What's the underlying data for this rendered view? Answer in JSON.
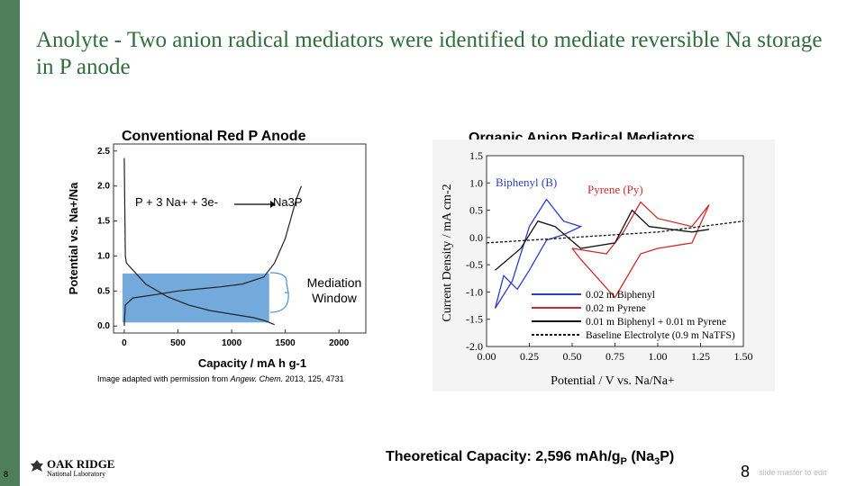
{
  "slide": {
    "title": "Anolyte - Two anion radical mediators were identified to mediate reversible Na storage in P anode",
    "left_heading": "Conventional Red P Anode",
    "right_heading": "Organic Anion Radical Mediators",
    "image_credit_prefix": "Image adapted with permission from ",
    "image_credit_journal": "Angew. Chem.",
    "image_credit_suffix": " 2013, 125, 4731",
    "capacity_note": "Theoretical Capacity: 2,596 mAh/gP (Na3P)",
    "page_number": "8",
    "page_number_small": "8",
    "footer_hint": "slide master to edit",
    "logo_text_1": "OAK RIDGE",
    "logo_text_2": "National Laboratory",
    "accent_color": "#2f6e3c",
    "sidebar_color": "#4f7f5a"
  },
  "left_chart": {
    "reaction_left": "P + 3 Na+ + 3e-",
    "reaction_right": "Na3P",
    "mediation_label_1": "Mediation",
    "mediation_label_2": "Window",
    "xlabel": "Capacity / mA h g-1",
    "ylabel": "Potential vs. Na+/Na",
    "xticks": [
      "0",
      "500",
      "1000",
      "1500",
      "2000"
    ],
    "yticks": [
      "0.0",
      "0.5",
      "1.0",
      "1.5",
      "2.0",
      "2.5"
    ],
    "window_color": "#5b9bd5"
  },
  "right_chart": {
    "xlabel": "Potential / V vs. Na/Na+",
    "ylabel": "Current Density / mA cm-2",
    "xticks": [
      "0.00",
      "0.25",
      "0.50",
      "0.75",
      "1.00",
      "1.25",
      "1.50"
    ],
    "yticks": [
      "1.5",
      "1.0",
      "0.5",
      "0.0",
      "-0.5",
      "-1.0",
      "-1.5",
      "-2.0"
    ],
    "annot_biphenyl": "Biphenyl (B)",
    "annot_pyrene": "Pyrene (Py)",
    "legend": [
      {
        "label": "0.02 m Biphenyl",
        "color": "#2b3fc7",
        "dash": false
      },
      {
        "label": "0.02 m Pyrene",
        "color": "#d22a2a",
        "dash": false
      },
      {
        "label": "0.01 m Biphenyl + 0.01 m Pyrene",
        "color": "#111111",
        "dash": false
      },
      {
        "label": "Baseline Electrolyte (0.9 m NaTFS)",
        "color": "#111111",
        "dash": true
      }
    ]
  },
  "chart_data": [
    {
      "type": "line",
      "title": "Conventional Red P Anode",
      "xlabel": "Capacity / mA h g-1",
      "ylabel": "Potential vs. Na+/Na",
      "xlim": [
        -100,
        2250
      ],
      "ylim": [
        -0.1,
        2.6
      ],
      "series": [
        {
          "name": "",
          "x": [
            0,
            10,
            20,
            80,
            200,
            400,
            600,
            800,
            1000,
            1200,
            1300,
            1400
          ],
          "y": [
            2.4,
            1.0,
            0.9,
            0.8,
            0.6,
            0.42,
            0.3,
            0.22,
            0.17,
            0.12,
            0.08,
            0.02
          ]
        },
        {
          "name": "",
          "x": [
            0,
            10,
            80,
            300,
            500,
            700,
            900,
            1100,
            1300,
            1400,
            1500,
            1600,
            1650
          ],
          "y": [
            0.0,
            0.3,
            0.4,
            0.45,
            0.5,
            0.53,
            0.56,
            0.6,
            0.7,
            0.9,
            1.25,
            1.8,
            2.0
          ]
        }
      ]
    },
    {
      "type": "line",
      "title": "Organic Anion Radical Mediators",
      "xlabel": "Potential / V vs. Na/Na+",
      "ylabel": "Current Density / mA cm-2",
      "xlim": [
        0.0,
        1.5
      ],
      "ylim": [
        -2.0,
        1.5
      ],
      "series": [
        {
          "name": "0.02 m Biphenyl",
          "x": [
            0.05,
            0.15,
            0.25,
            0.35,
            0.45,
            0.55,
            0.45,
            0.35,
            0.25,
            0.18,
            0.1,
            0.05
          ],
          "y": [
            -1.3,
            -0.8,
            0.2,
            0.7,
            0.3,
            0.2,
            0.05,
            -0.05,
            -0.6,
            -0.95,
            -0.7,
            -1.3
          ]
        },
        {
          "name": "0.02 m Pyrene",
          "x": [
            0.5,
            0.7,
            0.8,
            0.9,
            1.0,
            1.2,
            1.3,
            1.2,
            1.0,
            0.9,
            0.75,
            0.55,
            0.5
          ],
          "y": [
            -0.2,
            -0.3,
            0.1,
            0.65,
            0.35,
            0.2,
            0.6,
            -0.1,
            -0.2,
            -0.3,
            -1.1,
            -0.4,
            -0.2
          ]
        },
        {
          "name": "0.01 m Biphenyl + 0.01 m Pyrene",
          "x": [
            0.05,
            0.2,
            0.3,
            0.4,
            0.55,
            0.75,
            0.85,
            0.95,
            1.2,
            1.3
          ],
          "y": [
            -0.6,
            -0.2,
            0.3,
            0.2,
            -0.2,
            -0.1,
            0.5,
            0.2,
            0.1,
            0.15
          ]
        },
        {
          "name": "Baseline Electrolyte (0.9 m NaTFS)",
          "x": [
            0.0,
            0.5,
            1.0,
            1.5
          ],
          "y": [
            -0.1,
            0.0,
            0.1,
            0.3
          ]
        }
      ]
    }
  ]
}
